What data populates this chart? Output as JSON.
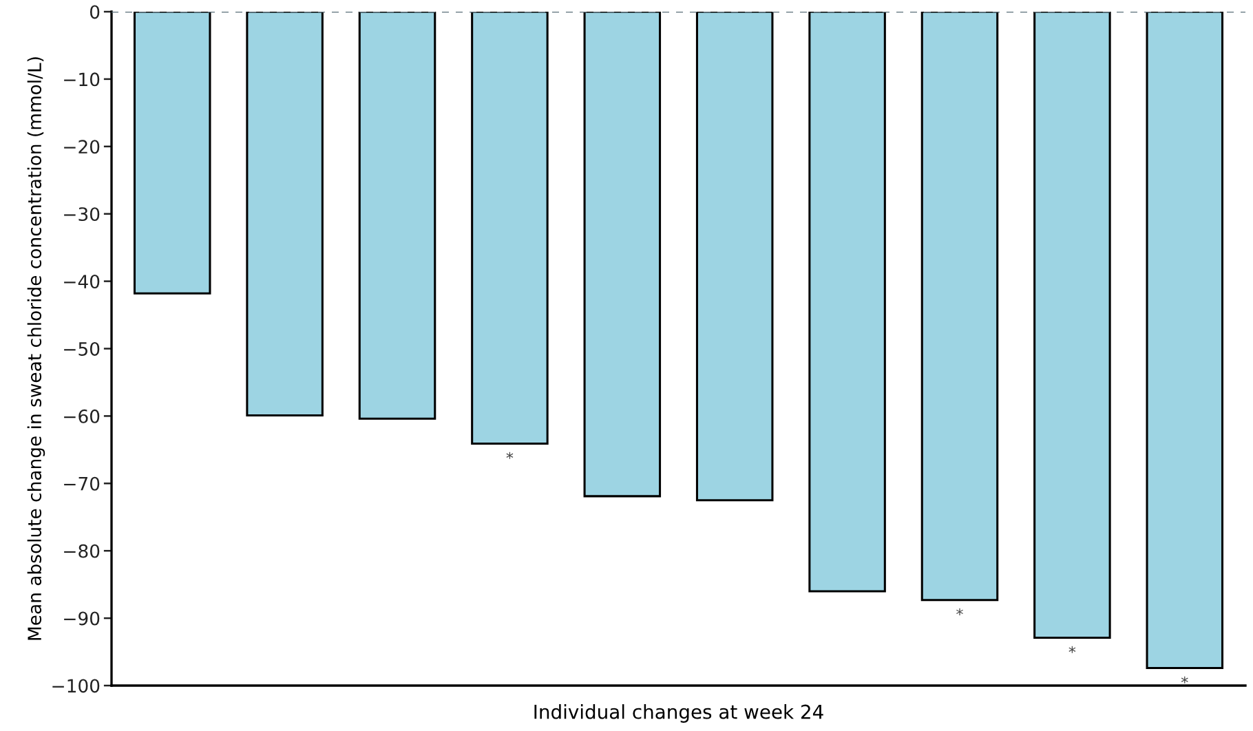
{
  "chart_data": {
    "type": "bar",
    "xlabel": "Individual changes at week 24",
    "ylabel": "Mean absolute change in sweat chloride concentration (mmol/L)",
    "categories": [
      null,
      null,
      null,
      null,
      null,
      null,
      null,
      null,
      null,
      null
    ],
    "values": [
      -41.8,
      -59.9,
      -60.4,
      -64.1,
      -71.9,
      -72.5,
      -86.0,
      -87.3,
      -92.9,
      -97.4
    ],
    "value_labels": [
      null,
      null,
      null,
      "*",
      null,
      null,
      null,
      "*",
      "*",
      "*"
    ],
    "color": "#9dd4e3",
    "ylim": [
      -100,
      0
    ],
    "yticks": [
      {
        "value": 0,
        "label": "0"
      },
      {
        "value": -10,
        "label": "−10"
      },
      {
        "value": -20,
        "label": "−20"
      },
      {
        "value": -30,
        "label": "−30"
      },
      {
        "value": -40,
        "label": "−40"
      },
      {
        "value": -50,
        "label": "−50"
      },
      {
        "value": -60,
        "label": "−60"
      },
      {
        "value": -70,
        "label": "−70"
      },
      {
        "value": -80,
        "label": "−80"
      },
      {
        "value": -90,
        "label": "−90"
      },
      {
        "value": -100,
        "label": "−100"
      }
    ],
    "ref_lines": [
      {
        "axis": "y",
        "value": 0,
        "color": "#5a6e78",
        "line_style": "dashed"
      }
    ],
    "grid": false,
    "legend": false
  }
}
